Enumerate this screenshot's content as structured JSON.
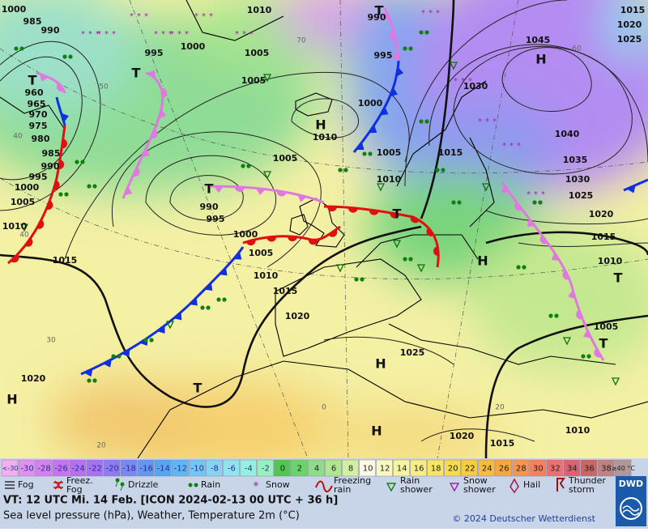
{
  "map": {
    "pressure_labels": [
      "1000",
      "985",
      "990",
      "960",
      "965",
      "970",
      "975",
      "980",
      "985",
      "990",
      "995",
      "1000",
      "1005",
      "1010",
      "1015",
      "995",
      "1000",
      "1005",
      "1010",
      "990",
      "995",
      "1000",
      "1005",
      "1005",
      "1010",
      "990",
      "995",
      "1000",
      "1005",
      "1010",
      "1015",
      "1020",
      "1005",
      "1010",
      "1015",
      "1030",
      "1045",
      "1040",
      "1035",
      "1030",
      "1025",
      "1020",
      "1015",
      "1010",
      "1005",
      "1025",
      "1020",
      "1015",
      "1010",
      "1020",
      "1015",
      "1020",
      "1025"
    ],
    "isotherm_labels": [
      "50",
      "40",
      "30",
      "20",
      "60",
      "70",
      "0",
      "40",
      "20"
    ],
    "centers": [
      "T",
      "T",
      "H",
      "T",
      "T",
      "H",
      "T",
      "H",
      "T",
      "H",
      "T",
      "H",
      "H",
      "T"
    ]
  },
  "legend": {
    "scale": [
      "<-30",
      "-30",
      "-28",
      "-26",
      "-24",
      "-22",
      "-20",
      "-18",
      "-16",
      "-14",
      "-12",
      "-10",
      "-8",
      "-6",
      "-4",
      "-2",
      "0",
      "2",
      "4",
      "6",
      "8",
      "10",
      "12",
      "14",
      "16",
      "18",
      "20",
      "22",
      "24",
      "26",
      "28",
      "30",
      "32",
      "34",
      "36",
      "38",
      "≥40 °C"
    ],
    "colors": [
      "#f0b0f0",
      "#e090f0",
      "#d282f0",
      "#c474f0",
      "#b670f0",
      "#a672f0",
      "#8e7af2",
      "#7888f2",
      "#6496f2",
      "#54a6f2",
      "#60b6f2",
      "#72c6f2",
      "#84d4f2",
      "#92e2f0",
      "#96f0e2",
      "#98f0c0",
      "#50c850",
      "#6ad46a",
      "#8edc8a",
      "#b0e690",
      "#d2f0a2",
      "#fafae6",
      "#f8f8c0",
      "#f6f4a0",
      "#f6ee84",
      "#f6e666",
      "#f6dc48",
      "#f6cc40",
      "#f6bc40",
      "#f6a840",
      "#f69450",
      "#f48060",
      "#ec7070",
      "#dc6272",
      "#cc6666",
      "#be8282",
      "#b09898"
    ],
    "symbols": [
      "Fog",
      "Freez. Fog",
      "Drizzle",
      "Rain",
      "Snow",
      "Freezing rain",
      "Rain shower",
      "Snow shower",
      "Hail",
      "Thunder storm"
    ]
  },
  "footer": {
    "valid_time": "VT: 12 UTC Mi.  14 Feb. [ICON 2024-02-13  00 UTC + 36 h]",
    "description": "Sea level pressure (hPa), Weather, Temperature 2m (°C)",
    "copyright": "© 2024 Deutscher Wetterdienst",
    "logo": "DWD"
  }
}
